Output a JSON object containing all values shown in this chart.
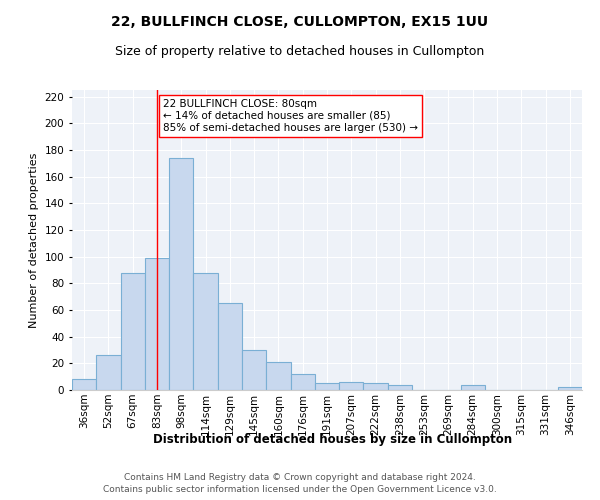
{
  "title": "22, BULLFINCH CLOSE, CULLOMPTON, EX15 1UU",
  "subtitle": "Size of property relative to detached houses in Cullompton",
  "xlabel": "Distribution of detached houses by size in Cullompton",
  "ylabel": "Number of detached properties",
  "categories": [
    "36sqm",
    "52sqm",
    "67sqm",
    "83sqm",
    "98sqm",
    "114sqm",
    "129sqm",
    "145sqm",
    "160sqm",
    "176sqm",
    "191sqm",
    "207sqm",
    "222sqm",
    "238sqm",
    "253sqm",
    "269sqm",
    "284sqm",
    "300sqm",
    "315sqm",
    "331sqm",
    "346sqm"
  ],
  "values": [
    8,
    26,
    88,
    99,
    174,
    88,
    65,
    30,
    21,
    12,
    5,
    6,
    5,
    4,
    0,
    0,
    4,
    0,
    0,
    0,
    2
  ],
  "bar_color": "#c8d8ee",
  "bar_edge_color": "#7aafd4",
  "property_line_idx": 3,
  "annotation_line1": "22 BULLFINCH CLOSE: 80sqm",
  "annotation_line2": "← 14% of detached houses are smaller (85)",
  "annotation_line3": "85% of semi-detached houses are larger (530) →",
  "ylim": [
    0,
    225
  ],
  "yticks": [
    0,
    20,
    40,
    60,
    80,
    100,
    120,
    140,
    160,
    180,
    200,
    220
  ],
  "footer_line1": "Contains HM Land Registry data © Crown copyright and database right 2024.",
  "footer_line2": "Contains public sector information licensed under the Open Government Licence v3.0.",
  "background_color": "#eef2f8",
  "grid_color": "#ffffff",
  "title_fontsize": 10,
  "subtitle_fontsize": 9,
  "xlabel_fontsize": 8.5,
  "ylabel_fontsize": 8,
  "tick_fontsize": 7.5,
  "annotation_fontsize": 7.5,
  "footer_fontsize": 6.5
}
